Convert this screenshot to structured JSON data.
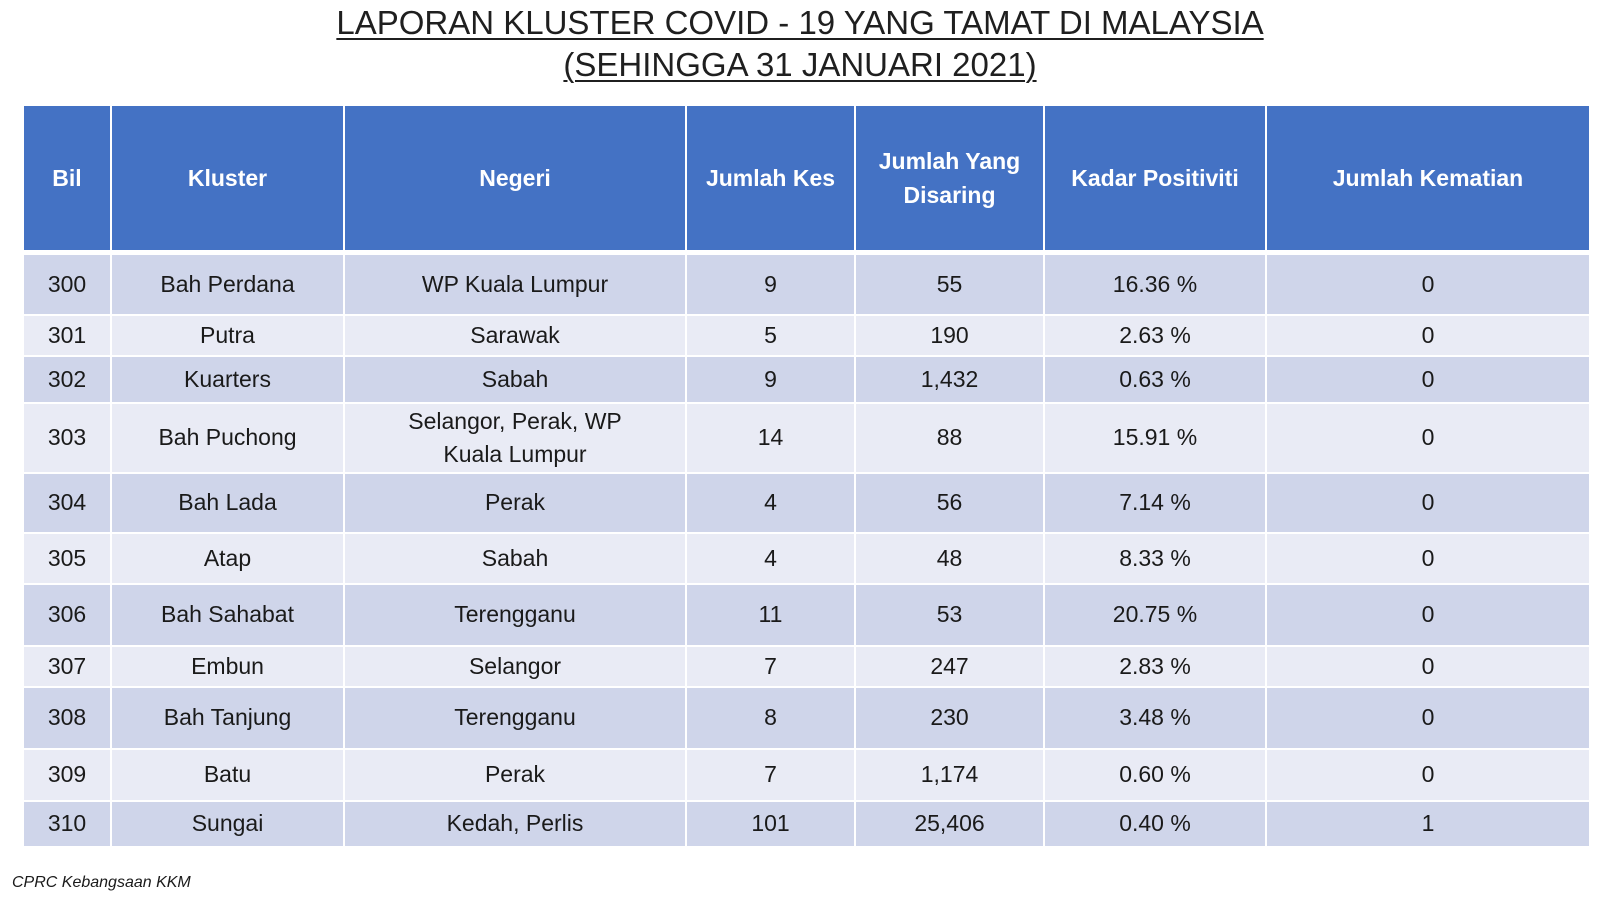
{
  "title": {
    "line1": "LAPORAN KLUSTER COVID - 19 YANG TAMAT DI MALAYSIA",
    "line2": "(SEHINGGA 31 JANUARI 2021)"
  },
  "table": {
    "headers": [
      "Bil",
      "Kluster",
      "Negeri",
      "Jumlah Kes",
      "Jumlah Yang Disaring",
      "Kadar Positiviti",
      "Jumlah Kematian"
    ],
    "rows": [
      {
        "bil": "300",
        "kluster": "Bah Perdana",
        "negeri": "WP Kuala Lumpur",
        "kes": "9",
        "disaring": "55",
        "positiviti": "16.36 %",
        "kematian": "0"
      },
      {
        "bil": "301",
        "kluster": "Putra",
        "negeri": "Sarawak",
        "kes": "5",
        "disaring": "190",
        "positiviti": "2.63 %",
        "kematian": "0"
      },
      {
        "bil": "302",
        "kluster": "Kuarters",
        "negeri": "Sabah",
        "kes": "9",
        "disaring": "1,432",
        "positiviti": "0.63 %",
        "kematian": "0"
      },
      {
        "bil": "303",
        "kluster": "Bah Puchong",
        "negeri": "Selangor, Perak, WP Kuala Lumpur",
        "kes": "14",
        "disaring": "88",
        "positiviti": "15.91 %",
        "kematian": "0"
      },
      {
        "bil": "304",
        "kluster": "Bah Lada",
        "negeri": "Perak",
        "kes": "4",
        "disaring": "56",
        "positiviti": "7.14 %",
        "kematian": "0"
      },
      {
        "bil": "305",
        "kluster": "Atap",
        "negeri": "Sabah",
        "kes": "4",
        "disaring": "48",
        "positiviti": "8.33 %",
        "kematian": "0"
      },
      {
        "bil": "306",
        "kluster": "Bah Sahabat",
        "negeri": "Terengganu",
        "kes": "11",
        "disaring": "53",
        "positiviti": "20.75 %",
        "kematian": "0"
      },
      {
        "bil": "307",
        "kluster": "Embun",
        "negeri": "Selangor",
        "kes": "7",
        "disaring": "247",
        "positiviti": "2.83 %",
        "kematian": "0"
      },
      {
        "bil": "308",
        "kluster": "Bah Tanjung",
        "negeri": "Terengganu",
        "kes": "8",
        "disaring": "230",
        "positiviti": "3.48 %",
        "kematian": "0"
      },
      {
        "bil": "309",
        "kluster": "Batu",
        "negeri": "Perak",
        "kes": "7",
        "disaring": "1,174",
        "positiviti": "0.60 %",
        "kematian": "0"
      },
      {
        "bil": "310",
        "kluster": "Sungai",
        "negeri": "Kedah, Perlis",
        "kes": "101",
        "disaring": "25,406",
        "positiviti": "0.40 %",
        "kematian": "1"
      }
    ]
  },
  "footer": {
    "source": "CPRC Kebangsaan KKM"
  },
  "colors": {
    "header_bg": "#4472c4",
    "row_dark": "#cfd5ea",
    "row_light": "#e9ebf5"
  }
}
